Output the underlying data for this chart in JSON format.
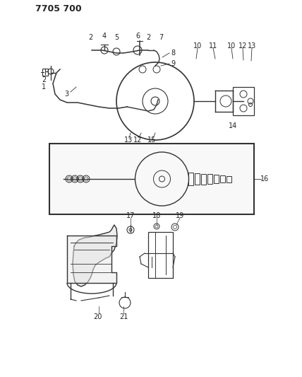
{
  "title": "7705 700",
  "background_color": "#ffffff",
  "line_color": "#333333",
  "label_color": "#222222",
  "figsize": [
    4.28,
    5.33
  ],
  "dpi": 100
}
